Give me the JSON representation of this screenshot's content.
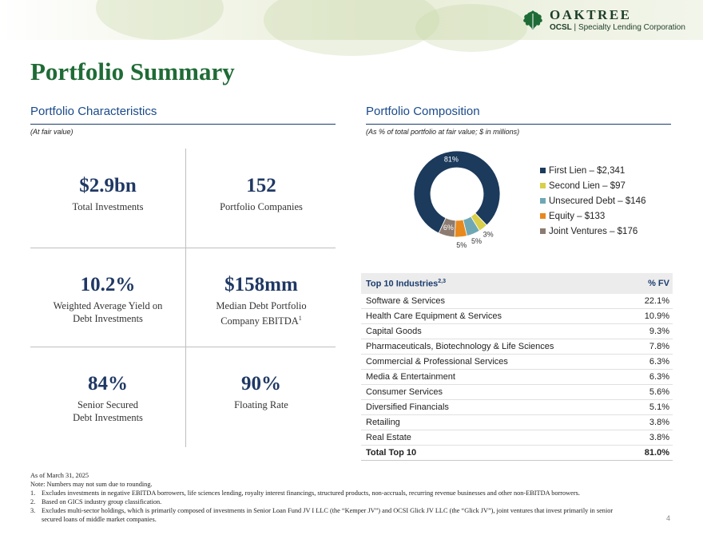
{
  "header": {
    "logo_name": "OAKTREE",
    "logo_ticker": "OCSL",
    "logo_separator": " | ",
    "logo_tagline": "Specialty Lending Corporation",
    "logo_icon": "oak-leaf-icon"
  },
  "page_title": "Portfolio Summary",
  "characteristics": {
    "title": "Portfolio Characteristics",
    "note": "(At fair value)",
    "stats": [
      {
        "value": "$2.9bn",
        "label": "Total Investments"
      },
      {
        "value": "152",
        "label": "Portfolio Companies"
      },
      {
        "value": "10.2%",
        "label_line1": "Weighted Average Yield on",
        "label_line2": "Debt Investments"
      },
      {
        "value": "$158mm",
        "label_line1": "Median Debt Portfolio",
        "label_line2": "Company EBITDA",
        "footnote_ref": "1"
      },
      {
        "value": "84%",
        "label_line1": "Senior Secured",
        "label_line2": "Debt Investments"
      },
      {
        "value": "90%",
        "label": "Floating Rate"
      }
    ]
  },
  "composition": {
    "title": "Portfolio Composition",
    "note": "(As % of total portfolio at fair value; $ in millions)"
  },
  "chart_data": {
    "type": "pie",
    "donut": true,
    "slices": [
      {
        "name": "First Lien",
        "amount": 2341,
        "percent_label": "81%",
        "color": "#1b3a5c"
      },
      {
        "name": "Second Lien",
        "amount": 97,
        "percent_label": "3%",
        "color": "#d9cf4a"
      },
      {
        "name": "Unsecured Debt",
        "amount": 146,
        "percent_label": "5%",
        "color": "#6fa8b4"
      },
      {
        "name": "Equity",
        "amount": 133,
        "percent_label": "5%",
        "color": "#e8891e"
      },
      {
        "name": "Joint Ventures",
        "amount": 176,
        "percent_label": "6%",
        "color": "#8c7b70"
      }
    ],
    "legend": [
      "First Lien – $2,341",
      "Second Lien – $97",
      "Unsecured Debt – $146",
      "Equity – $133",
      "Joint Ventures – $176"
    ],
    "legend_position": "right"
  },
  "industries": {
    "header_label": "Top 10 Industries",
    "header_sup": "2,3",
    "header_value": "% FV",
    "rows": [
      {
        "name": "Software & Services",
        "value": "22.1%"
      },
      {
        "name": "Health Care Equipment & Services",
        "value": "10.9%"
      },
      {
        "name": "Capital Goods",
        "value": "9.3%"
      },
      {
        "name": "Pharmaceuticals, Biotechnology & Life Sciences",
        "value": "7.8%"
      },
      {
        "name": "Commercial & Professional Services",
        "value": "6.3%"
      },
      {
        "name": "Media & Entertainment",
        "value": "6.3%"
      },
      {
        "name": "Consumer Services",
        "value": "5.6%"
      },
      {
        "name": "Diversified Financials",
        "value": "5.1%"
      },
      {
        "name": "Retailing",
        "value": "3.8%"
      },
      {
        "name": "Real Estate",
        "value": "3.8%"
      }
    ],
    "total_label": "Total Top 10",
    "total_value": "81.0%"
  },
  "footnotes": {
    "as_of": "As of March 31, 2025",
    "note": "Note: Numbers may not sum due to rounding.",
    "items": [
      {
        "num": "1.",
        "text": "Excludes investments in negative EBITDA borrowers, life sciences lending, royalty interest financings, structured products, non-accruals, recurring revenue businesses and other non-EBITDA borrowers."
      },
      {
        "num": "2.",
        "text": "Based on GICS industry group classification."
      },
      {
        "num": "3.",
        "text": "Excludes multi-sector holdings, which is primarily composed of investments in Senior Loan Fund JV I LLC (the “Kemper JV”) and OCSI Glick JV LLC (the “Glick JV”), joint ventures that invest primarily in senior",
        "continuation": "secured loans of middle market companies."
      }
    ]
  },
  "page_number": "4"
}
